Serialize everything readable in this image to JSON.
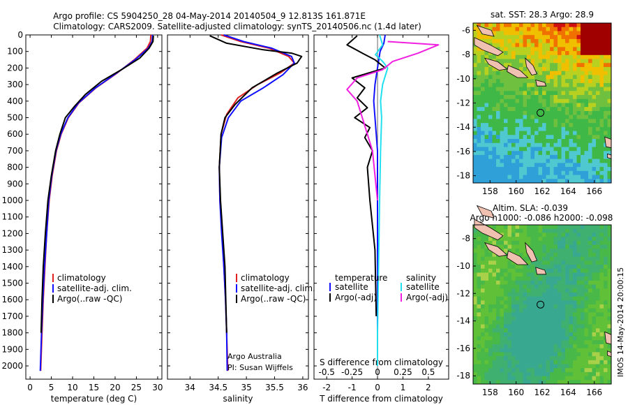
{
  "title": {
    "line1": "Argo profile: CS 5904250_28 04-May-2014 20140504_9 12.813S 161.871E",
    "line2": "Climatology: CARS2009. Satellite-adjusted climatology: synTS_20140506.nc (1.4d later)"
  },
  "colors": {
    "climatology": "#e02020",
    "satellite": "#1010ff",
    "argo": "#000000",
    "satellite_s": "#20e0f0",
    "argo_s": "#f020e0"
  },
  "legend_panel1": [
    "climatology",
    "satellite-adj. clim.",
    "Argo(..raw -QC)"
  ],
  "legend_panel2": [
    "climatology",
    "satellite-adj. clim.",
    "Argo(..raw -QC)"
  ],
  "legend_panel3": {
    "temperature": "temperature",
    "salinity": "salinity",
    "t_items": [
      "satellite",
      "Argo(-adj)"
    ],
    "s_items": [
      "satellite",
      "Argo(-adj)"
    ]
  },
  "credits": {
    "line1": "Argo Australia",
    "line2": "PI: Susan Wijffels"
  },
  "map_sst": {
    "title": "sat. SST: 28.3 Argo: 28.9"
  },
  "map_sla": {
    "title1": "Altim. SLA: -0.039",
    "title2": "Argo h1000: -0.086 h2000: -0.098"
  },
  "timestamp": "IMOS 14-May-2014 20:00:15",
  "chart_data": [
    {
      "type": "line",
      "name": "temperature profile",
      "xlabel": "temperature (deg C)",
      "ylabel": "",
      "xlim": [
        -1,
        31
      ],
      "ylim": [
        2080,
        0
      ],
      "xticks": [
        0,
        5,
        10,
        15,
        20,
        25,
        30
      ],
      "yticks": [
        0,
        100,
        200,
        300,
        400,
        500,
        600,
        700,
        800,
        900,
        1000,
        1100,
        1200,
        1300,
        1400,
        1500,
        1600,
        1700,
        1800,
        1900,
        2000
      ],
      "series": [
        {
          "name": "climatology",
          "x": [
            28.4,
            28.3,
            27.5,
            24.5,
            20.5,
            15.5,
            11.5,
            9.0,
            7.3,
            6.2,
            5.2,
            4.5,
            3.9,
            3.5,
            3.1,
            2.8,
            2.5
          ],
          "y": [
            0,
            40,
            80,
            150,
            230,
            320,
            410,
            500,
            600,
            700,
            850,
            1000,
            1200,
            1400,
            1600,
            1800,
            2030
          ]
        },
        {
          "name": "satellite-adj. clim.",
          "x": [
            28.8,
            28.7,
            27.8,
            24.7,
            20.4,
            15.4,
            11.4,
            8.9,
            7.2,
            6.1,
            5.1,
            4.4,
            3.9,
            3.4,
            3.0,
            2.7,
            2.4
          ],
          "y": [
            0,
            40,
            80,
            150,
            230,
            320,
            410,
            500,
            600,
            700,
            850,
            1000,
            1200,
            1400,
            1600,
            1800,
            2030
          ]
        },
        {
          "name": "Argo(..raw -QC)",
          "x": [
            29.0,
            28.9,
            28.0,
            25.8,
            21.5,
            16.8,
            13.0,
            10.5,
            8.3,
            7.0,
            6.0,
            5.0,
            4.2,
            3.6,
            3.1,
            2.8,
            2.6
          ],
          "y": [
            5,
            40,
            80,
            140,
            210,
            280,
            360,
            430,
            500,
            600,
            700,
            850,
            1000,
            1200,
            1400,
            1600,
            1800
          ]
        }
      ]
    },
    {
      "type": "line",
      "name": "salinity profile",
      "xlabel": "salinity",
      "ylabel": "",
      "xlim": [
        33.6,
        36.1
      ],
      "ylim": [
        2080,
        0
      ],
      "xticks": [
        34,
        34.5,
        35,
        35.5,
        36
      ],
      "series": [
        {
          "name": "climatology",
          "x": [
            34.55,
            34.9,
            35.4,
            35.75,
            35.85,
            35.6,
            35.2,
            34.85,
            34.65,
            34.55,
            34.52,
            34.53,
            34.57,
            34.6,
            34.63,
            34.65,
            34.67
          ],
          "y": [
            0,
            40,
            80,
            130,
            170,
            230,
            300,
            380,
            480,
            600,
            800,
            1000,
            1200,
            1400,
            1600,
            1800,
            2030
          ]
        },
        {
          "name": "satellite-adj. clim.",
          "x": [
            34.6,
            34.95,
            35.45,
            35.8,
            35.85,
            35.65,
            35.3,
            34.9,
            34.68,
            34.56,
            34.52,
            34.53,
            34.56,
            34.6,
            34.63,
            34.65,
            34.66
          ],
          "y": [
            0,
            40,
            80,
            130,
            170,
            240,
            320,
            400,
            500,
            620,
            800,
            1000,
            1200,
            1400,
            1600,
            1800,
            2030
          ]
        },
        {
          "name": "Argo(..raw -QC)",
          "x": [
            34.35,
            34.65,
            35.3,
            35.8,
            35.98,
            35.9,
            35.55,
            35.1,
            34.8,
            34.62,
            34.55,
            34.52,
            34.54,
            34.58,
            34.62,
            34.65
          ],
          "y": [
            5,
            50,
            90,
            110,
            130,
            170,
            230,
            320,
            420,
            500,
            600,
            800,
            1000,
            1200,
            1400,
            1800
          ]
        }
      ]
    },
    {
      "type": "line",
      "name": "difference from climatology",
      "xlabel": "T difference from climatology",
      "xlabel_top": "S difference from climatology",
      "xlim": [
        -2.5,
        2.8
      ],
      "ylim": [
        2080,
        0
      ],
      "xticks": [
        -2,
        -1,
        0,
        1,
        2
      ],
      "xticks_s": [
        -0.5,
        -0.25,
        0,
        0.25,
        0.5
      ],
      "series": [
        {
          "name": "T satellite",
          "x": [
            0.3,
            0.25,
            0.1,
            0.0,
            -0.1,
            -0.15,
            -0.1,
            -0.05,
            0.0,
            0.0,
            0.0,
            0.0,
            0.0,
            0.0
          ],
          "y": [
            0,
            50,
            100,
            200,
            300,
            400,
            500,
            600,
            700,
            800,
            1000,
            1400,
            1800,
            2000
          ]
        },
        {
          "name": "T Argo(-adj)",
          "x": [
            -0.8,
            -1.2,
            -0.6,
            -0.1,
            0.3,
            -1.0,
            -0.5,
            -0.8,
            -0.4,
            -0.9,
            -0.3,
            -0.5,
            -0.2,
            -0.4,
            -0.3,
            -0.1,
            -0.05
          ],
          "y": [
            5,
            60,
            110,
            150,
            200,
            260,
            320,
            380,
            440,
            500,
            560,
            620,
            700,
            800,
            1000,
            1300,
            1700
          ]
        },
        {
          "name": "S satellite",
          "x": [
            0.02,
            0.05,
            -0.02,
            0.05,
            0.1,
            0.05,
            0.03,
            0.04,
            0.03,
            0.02,
            0.01,
            0.0,
            0.0
          ],
          "y": [
            0,
            60,
            120,
            160,
            200,
            300,
            400,
            500,
            700,
            1000,
            1400,
            1800,
            2000
          ]
        },
        {
          "name": "S Argo(-adj)",
          "x": [
            0.1,
            0.6,
            0.4,
            0.15,
            0.05,
            -0.2,
            -0.3,
            -0.2,
            -0.15,
            -0.1,
            -0.05,
            0.0
          ],
          "y": [
            40,
            60,
            110,
            160,
            210,
            260,
            330,
            400,
            500,
            600,
            700,
            1000
          ]
        }
      ]
    },
    {
      "type": "heatmap",
      "name": "satellite SST map",
      "xlim": [
        156.7,
        167.3
      ],
      "ylim": [
        -18.6,
        -5.4
      ],
      "xticks": [
        158,
        160,
        162,
        164,
        166
      ],
      "yticks": [
        -6,
        -8,
        -10,
        -12,
        -14,
        -16,
        -18
      ],
      "float_position": [
        161.87,
        -12.81
      ]
    },
    {
      "type": "heatmap",
      "name": "altimetry SLA map",
      "xlim": [
        156.7,
        167.3
      ],
      "ylim": [
        -18.6,
        -7.0
      ],
      "xticks": [
        158,
        160,
        162,
        164,
        166
      ],
      "yticks": [
        -8,
        -10,
        -12,
        -14,
        -16,
        -18
      ],
      "float_position": [
        161.87,
        -12.81
      ]
    }
  ]
}
